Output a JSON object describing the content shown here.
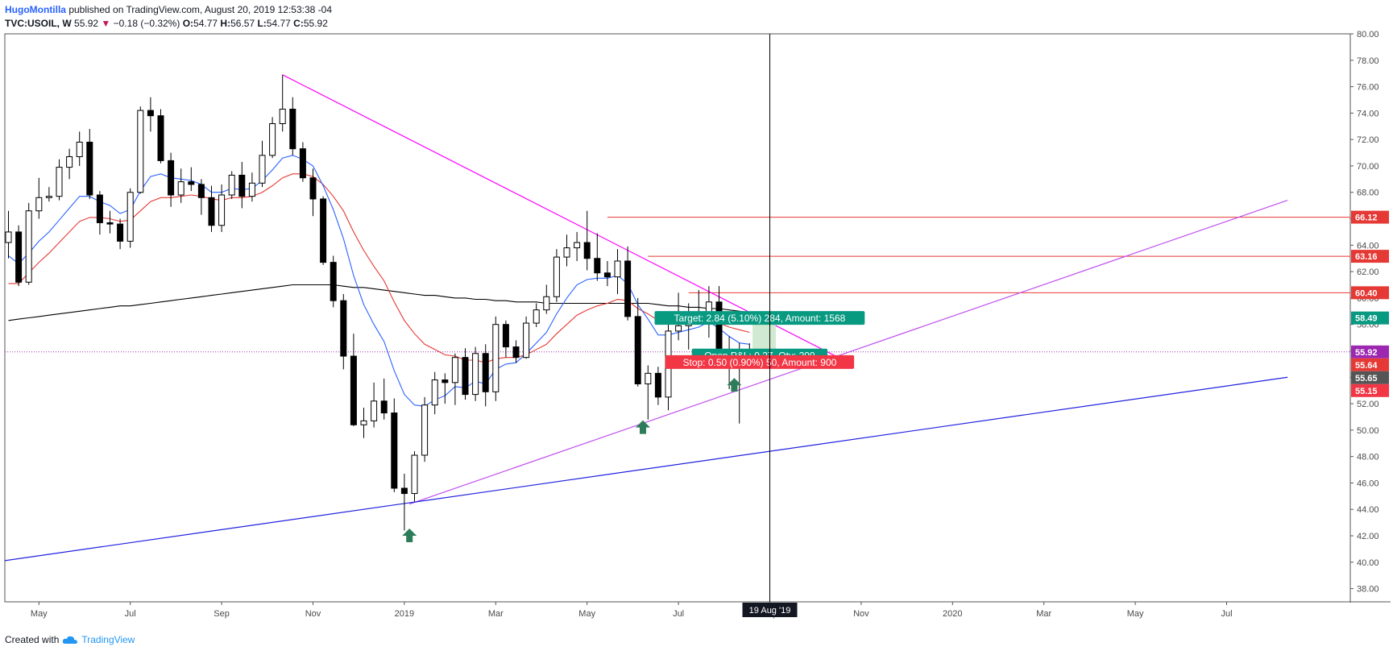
{
  "header": {
    "author": "HugoMontilla",
    "published_text": "published on TradingView.com, August 20, 2019 12:53:38 -04",
    "symbol": "TVC:USOIL, W",
    "last": "55.92",
    "change_arrow": "▼",
    "change": "−0.18 (−0.32%)",
    "o_label": "O:",
    "o_value": "54.77",
    "h_label": "H:",
    "h_value": "56.57",
    "l_label": "L:",
    "l_value": "54.77",
    "c_label": "C:",
    "c_value": "55.92"
  },
  "footer": {
    "created_with": "Created with",
    "brand": "TradingView",
    "logo_icon": "tradingview-cloud-icon"
  },
  "colors": {
    "up_candle": "#ffffff",
    "down_candle": "#000000",
    "ema_fast": "#2962ff",
    "ema_mid": "#e53935",
    "sma_long": "#000000",
    "trend_down": "#ff00ff",
    "trend_up": "#c050f0",
    "long_trend": "#2020e0",
    "level_lines": "#e53935",
    "target_green": "#089981",
    "stop_red": "#f23645",
    "arrow_green": "#2e7d5a",
    "last_price_tag": "#9c27b0"
  },
  "chart_data": {
    "type": "candlestick",
    "symbol": "TVC:USOIL",
    "interval": "W",
    "y_axis": {
      "ylim": [
        37,
        80
      ],
      "position": "right",
      "ticks": [
        "80.00",
        "78.00",
        "76.00",
        "74.00",
        "72.00",
        "70.00",
        "68.00",
        "66.00",
        "64.00",
        "62.00",
        "60.00",
        "58.00",
        "56.00",
        "54.00",
        "52.00",
        "50.00",
        "48.00",
        "46.00",
        "44.00",
        "42.00",
        "40.00",
        "38.00"
      ]
    },
    "x_axis": {
      "ticks": [
        {
          "label": "May",
          "i": 3
        },
        {
          "label": "Jul",
          "i": 12
        },
        {
          "label": "Sep",
          "i": 21
        },
        {
          "label": "Nov",
          "i": 30
        },
        {
          "label": "2019",
          "i": 39
        },
        {
          "label": "Mar",
          "i": 48
        },
        {
          "label": "May",
          "i": 57
        },
        {
          "label": "Jul",
          "i": 66
        },
        {
          "label": "Sep",
          "i": 75
        },
        {
          "label": "Nov",
          "i": 84
        },
        {
          "label": "2020",
          "i": 93
        },
        {
          "label": "Mar",
          "i": 102
        },
        {
          "label": "May",
          "i": 111
        },
        {
          "label": "Jul",
          "i": 120
        }
      ],
      "crosshair_label": "19 Aug '19",
      "crosshair_index": 75
    },
    "candles": [
      {
        "o": 64.2,
        "h": 66.6,
        "l": 63.0,
        "c": 65.0
      },
      {
        "o": 65.0,
        "h": 65.5,
        "l": 60.9,
        "c": 61.2
      },
      {
        "o": 61.2,
        "h": 67.2,
        "l": 61.0,
        "c": 66.6
      },
      {
        "o": 66.6,
        "h": 69.1,
        "l": 66.0,
        "c": 67.6
      },
      {
        "o": 67.6,
        "h": 68.4,
        "l": 67.3,
        "c": 67.7
      },
      {
        "o": 67.7,
        "h": 70.5,
        "l": 67.4,
        "c": 69.9
      },
      {
        "o": 69.9,
        "h": 71.3,
        "l": 69.0,
        "c": 70.7
      },
      {
        "o": 70.7,
        "h": 72.6,
        "l": 70.0,
        "c": 71.8
      },
      {
        "o": 71.8,
        "h": 72.8,
        "l": 67.5,
        "c": 67.8
      },
      {
        "o": 67.8,
        "h": 68.1,
        "l": 64.8,
        "c": 65.7
      },
      {
        "o": 65.7,
        "h": 66.6,
        "l": 64.9,
        "c": 65.6
      },
      {
        "o": 65.6,
        "h": 66.0,
        "l": 63.7,
        "c": 64.3
      },
      {
        "o": 64.3,
        "h": 68.3,
        "l": 63.8,
        "c": 68.0
      },
      {
        "o": 68.0,
        "h": 74.5,
        "l": 67.9,
        "c": 74.2
      },
      {
        "o": 74.2,
        "h": 75.2,
        "l": 72.6,
        "c": 73.8
      },
      {
        "o": 73.8,
        "h": 74.3,
        "l": 70.2,
        "c": 70.4
      },
      {
        "o": 70.4,
        "h": 71.0,
        "l": 66.9,
        "c": 67.8
      },
      {
        "o": 67.8,
        "h": 69.8,
        "l": 67.2,
        "c": 68.8
      },
      {
        "o": 68.8,
        "h": 69.9,
        "l": 68.1,
        "c": 68.6
      },
      {
        "o": 68.6,
        "h": 69.0,
        "l": 66.3,
        "c": 67.6
      },
      {
        "o": 67.6,
        "h": 68.5,
        "l": 65.0,
        "c": 65.5
      },
      {
        "o": 65.5,
        "h": 68.6,
        "l": 65.0,
        "c": 67.8
      },
      {
        "o": 67.8,
        "h": 69.6,
        "l": 67.5,
        "c": 69.3
      },
      {
        "o": 69.3,
        "h": 70.3,
        "l": 66.8,
        "c": 67.7
      },
      {
        "o": 67.7,
        "h": 69.5,
        "l": 67.3,
        "c": 68.7
      },
      {
        "o": 68.7,
        "h": 71.9,
        "l": 68.4,
        "c": 70.8
      },
      {
        "o": 70.8,
        "h": 73.7,
        "l": 70.6,
        "c": 73.2
      },
      {
        "o": 73.2,
        "h": 76.9,
        "l": 72.6,
        "c": 74.3
      },
      {
        "o": 74.3,
        "h": 75.2,
        "l": 70.8,
        "c": 71.3
      },
      {
        "o": 71.3,
        "h": 71.8,
        "l": 68.8,
        "c": 69.1
      },
      {
        "o": 69.1,
        "h": 69.8,
        "l": 66.2,
        "c": 67.5
      },
      {
        "o": 67.5,
        "h": 67.7,
        "l": 62.5,
        "c": 62.7
      },
      {
        "o": 62.7,
        "h": 63.2,
        "l": 59.3,
        "c": 59.8
      },
      {
        "o": 59.8,
        "h": 60.3,
        "l": 54.6,
        "c": 55.6
      },
      {
        "o": 55.6,
        "h": 57.3,
        "l": 50.3,
        "c": 50.4
      },
      {
        "o": 50.4,
        "h": 51.7,
        "l": 49.4,
        "c": 50.7
      },
      {
        "o": 50.7,
        "h": 53.6,
        "l": 50.2,
        "c": 52.2
      },
      {
        "o": 52.2,
        "h": 53.9,
        "l": 50.8,
        "c": 51.3
      },
      {
        "o": 51.3,
        "h": 52.4,
        "l": 45.3,
        "c": 45.6
      },
      {
        "o": 45.6,
        "h": 46.7,
        "l": 42.4,
        "c": 45.2
      },
      {
        "o": 45.2,
        "h": 48.4,
        "l": 44.6,
        "c": 48.1
      },
      {
        "o": 48.1,
        "h": 52.5,
        "l": 47.6,
        "c": 51.9
      },
      {
        "o": 51.9,
        "h": 54.4,
        "l": 51.2,
        "c": 53.8
      },
      {
        "o": 53.8,
        "h": 54.3,
        "l": 52.0,
        "c": 53.6
      },
      {
        "o": 53.6,
        "h": 55.8,
        "l": 51.9,
        "c": 55.5
      },
      {
        "o": 55.5,
        "h": 56.2,
        "l": 52.3,
        "c": 52.7
      },
      {
        "o": 52.7,
        "h": 56.3,
        "l": 52.2,
        "c": 55.8
      },
      {
        "o": 55.8,
        "h": 56.5,
        "l": 51.8,
        "c": 52.9
      },
      {
        "o": 52.9,
        "h": 58.6,
        "l": 52.2,
        "c": 58.0
      },
      {
        "o": 58.0,
        "h": 58.3,
        "l": 55.5,
        "c": 56.3
      },
      {
        "o": 56.3,
        "h": 56.8,
        "l": 55.1,
        "c": 55.5
      },
      {
        "o": 55.5,
        "h": 58.6,
        "l": 55.4,
        "c": 58.1
      },
      {
        "o": 58.1,
        "h": 59.6,
        "l": 57.8,
        "c": 59.1
      },
      {
        "o": 59.1,
        "h": 61.0,
        "l": 58.8,
        "c": 60.1
      },
      {
        "o": 60.1,
        "h": 63.7,
        "l": 59.7,
        "c": 63.1
      },
      {
        "o": 63.1,
        "h": 64.8,
        "l": 62.4,
        "c": 63.8
      },
      {
        "o": 63.8,
        "h": 65.0,
        "l": 62.8,
        "c": 64.2
      },
      {
        "o": 64.2,
        "h": 66.6,
        "l": 62.1,
        "c": 63.0
      },
      {
        "o": 63.0,
        "h": 64.9,
        "l": 61.3,
        "c": 61.9
      },
      {
        "o": 61.9,
        "h": 62.8,
        "l": 60.9,
        "c": 61.6
      },
      {
        "o": 61.6,
        "h": 63.7,
        "l": 60.3,
        "c": 62.8
      },
      {
        "o": 62.8,
        "h": 63.9,
        "l": 58.3,
        "c": 58.6
      },
      {
        "o": 58.6,
        "h": 60.0,
        "l": 53.3,
        "c": 53.5
      },
      {
        "o": 53.5,
        "h": 54.9,
        "l": 50.8,
        "c": 54.3
      },
      {
        "o": 54.3,
        "h": 54.8,
        "l": 51.9,
        "c": 52.5
      },
      {
        "o": 52.5,
        "h": 58.0,
        "l": 51.5,
        "c": 57.5
      },
      {
        "o": 57.5,
        "h": 60.4,
        "l": 56.8,
        "c": 57.9
      },
      {
        "o": 57.9,
        "h": 59.6,
        "l": 56.1,
        "c": 58.6
      },
      {
        "o": 58.6,
        "h": 60.6,
        "l": 58.1,
        "c": 58.4
      },
      {
        "o": 58.4,
        "h": 60.9,
        "l": 57.0,
        "c": 59.7
      },
      {
        "o": 59.7,
        "h": 60.9,
        "l": 55.0,
        "c": 55.8
      },
      {
        "o": 55.8,
        "h": 57.1,
        "l": 53.1,
        "c": 54.8
      },
      {
        "o": 54.8,
        "h": 56.6,
        "l": 50.5,
        "c": 54.8
      },
      {
        "o": 54.77,
        "h": 56.57,
        "l": 54.77,
        "c": 55.92
      }
    ],
    "ema_fast": [
      63.2,
      62.6,
      63.4,
      64.3,
      65.0,
      65.9,
      66.8,
      67.7,
      67.7,
      67.3,
      67.0,
      66.4,
      66.7,
      68.1,
      69.2,
      69.4,
      69.1,
      69.0,
      68.9,
      68.6,
      68.0,
      68.0,
      68.3,
      68.2,
      68.3,
      68.9,
      69.7,
      70.6,
      70.8,
      70.5,
      70.0,
      68.5,
      66.7,
      64.5,
      61.7,
      59.5,
      58.0,
      56.7,
      54.5,
      52.7,
      51.9,
      51.8,
      52.3,
      52.6,
      53.3,
      53.2,
      53.7,
      53.5,
      54.6,
      55.0,
      55.1,
      55.8,
      56.6,
      57.4,
      58.8,
      60.0,
      61.0,
      61.4,
      61.5,
      61.5,
      61.7,
      61.1,
      59.5,
      58.4,
      57.2,
      57.2,
      57.4,
      57.6,
      57.8,
      58.2,
      57.7,
      57.1,
      56.6,
      56.5
    ],
    "ema_mid": [
      61.1,
      61.1,
      61.9,
      62.7,
      63.4,
      64.2,
      65.0,
      65.8,
      66.1,
      66.1,
      66.0,
      65.8,
      65.9,
      66.6,
      67.3,
      67.6,
      67.6,
      67.7,
      67.8,
      67.7,
      67.5,
      67.4,
      67.6,
      67.6,
      67.7,
      68.0,
      68.5,
      69.1,
      69.4,
      69.4,
      69.2,
      68.6,
      67.7,
      66.6,
      65.0,
      63.6,
      62.4,
      61.3,
      59.7,
      58.3,
      57.3,
      56.5,
      56.1,
      55.7,
      55.6,
      55.3,
      55.3,
      55.1,
      55.4,
      55.5,
      55.5,
      55.7,
      56.1,
      56.5,
      57.3,
      58.0,
      58.7,
      59.1,
      59.4,
      59.6,
      59.9,
      59.8,
      59.2,
      58.8,
      58.3,
      58.2,
      58.2,
      58.2,
      58.2,
      58.4,
      58.1,
      57.8,
      57.6,
      57.4
    ],
    "sma_long": [
      58.3,
      58.4,
      58.5,
      58.6,
      58.7,
      58.8,
      58.9,
      59.0,
      59.1,
      59.2,
      59.3,
      59.4,
      59.4,
      59.5,
      59.6,
      59.7,
      59.8,
      59.9,
      60.0,
      60.1,
      60.2,
      60.3,
      60.4,
      60.5,
      60.6,
      60.7,
      60.8,
      60.9,
      61.0,
      61.0,
      61.0,
      61.0,
      61.0,
      60.9,
      60.8,
      60.8,
      60.7,
      60.6,
      60.5,
      60.4,
      60.3,
      60.2,
      60.2,
      60.1,
      60.0,
      60.0,
      59.9,
      59.9,
      59.8,
      59.8,
      59.7,
      59.7,
      59.7,
      59.6,
      59.6,
      59.6,
      59.6,
      59.6,
      59.6,
      59.6,
      59.6,
      59.6,
      59.6,
      59.6,
      59.5,
      59.4,
      59.4,
      59.3,
      59.3,
      59.2,
      59.2,
      59.1,
      59.0,
      58.9
    ],
    "horizontal_levels": [
      "66.12",
      "63.16",
      "60.40"
    ],
    "dotted_last_price": "55.92",
    "trendlines": [
      {
        "name": "descending-resistance",
        "from": {
          "i": 27,
          "p": 76.9
        },
        "to": {
          "i": 81.5,
          "p": 55.6
        }
      },
      {
        "name": "ascending-support",
        "from": {
          "i": 39.5,
          "p": 44.4
        },
        "to": {
          "i": 126,
          "p": 67.4
        }
      },
      {
        "name": "long-term-support",
        "from": {
          "i": -6,
          "p": 39.5
        },
        "to": {
          "i": 126,
          "p": 54.0
        }
      }
    ],
    "long_position": {
      "target_label": "Target: 2.84 (5.10%) 284, Amount: 1568",
      "open_label": "Open P&L: 0.27, Qty: 200",
      "stop_label": "Stop: 0.50 (0.90%) 50, Amount: 900",
      "entry": 55.65,
      "target": 58.49,
      "stop": 55.15
    },
    "price_tags": [
      {
        "value": "66.12",
        "kind": "level"
      },
      {
        "value": "63.16",
        "kind": "level"
      },
      {
        "value": "60.40",
        "kind": "level"
      },
      {
        "value": "58.49",
        "kind": "target"
      },
      {
        "value": "55.92",
        "kind": "last"
      },
      {
        "value": "55.64",
        "kind": "level"
      },
      {
        "value": "55.65",
        "kind": "entry"
      },
      {
        "value": "55.15",
        "kind": "stop"
      }
    ],
    "arrows": [
      {
        "name": "up-arrow-1",
        "i": 39.5,
        "p": 42.0
      },
      {
        "name": "up-arrow-2",
        "i": 62.5,
        "p": 50.2
      },
      {
        "name": "up-arrow-3",
        "i": 71.5,
        "p": 53.4
      }
    ]
  }
}
